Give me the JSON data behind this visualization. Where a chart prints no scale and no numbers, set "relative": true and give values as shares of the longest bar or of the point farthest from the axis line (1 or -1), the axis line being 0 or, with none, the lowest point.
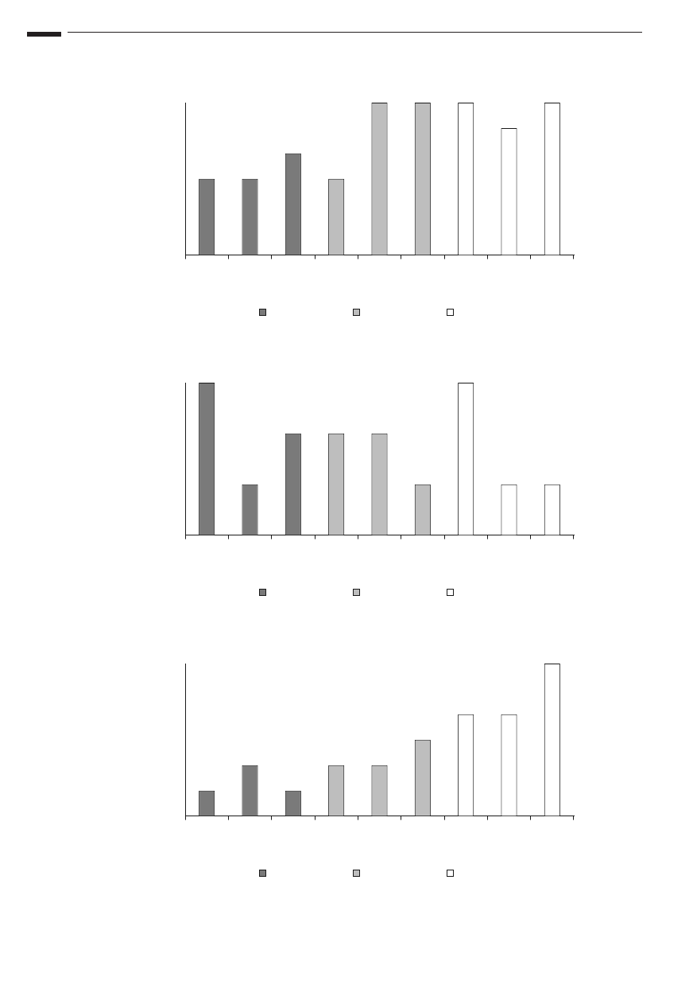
{
  "chart_data": [
    {
      "type": "bar",
      "relative": true,
      "categories": [
        null,
        null,
        null,
        null,
        null,
        null,
        null,
        null,
        null
      ],
      "values": [
        0.5,
        0.5,
        0.6667,
        0.5,
        1,
        1,
        1,
        0.8333,
        1
      ],
      "colors": [
        "#7a7a7a",
        "#7a7a7a",
        "#7a7a7a",
        "#bebebe",
        "#bebebe",
        "#bebebe",
        "#ffffff",
        "#ffffff",
        "#ffffff"
      ]
    },
    {
      "type": "bar",
      "relative": true,
      "categories": [
        null,
        null,
        null,
        null,
        null,
        null,
        null,
        null,
        null
      ],
      "values": [
        1,
        0.3333,
        0.6667,
        0.6667,
        0.6667,
        0.3333,
        1,
        0.3333,
        0.3333
      ],
      "colors": [
        "#7a7a7a",
        "#7a7a7a",
        "#7a7a7a",
        "#bebebe",
        "#bebebe",
        "#bebebe",
        "#ffffff",
        "#ffffff",
        "#ffffff"
      ]
    },
    {
      "type": "bar",
      "relative": true,
      "categories": [
        null,
        null,
        null,
        null,
        null,
        null,
        null,
        null,
        null
      ],
      "values": [
        0.1667,
        0.3333,
        0.1667,
        0.3333,
        0.3333,
        0.5,
        0.6667,
        0.6667,
        1
      ],
      "colors": [
        "#7a7a7a",
        "#7a7a7a",
        "#7a7a7a",
        "#bebebe",
        "#bebebe",
        "#bebebe",
        "#ffffff",
        "#ffffff",
        "#ffffff"
      ]
    }
  ]
}
